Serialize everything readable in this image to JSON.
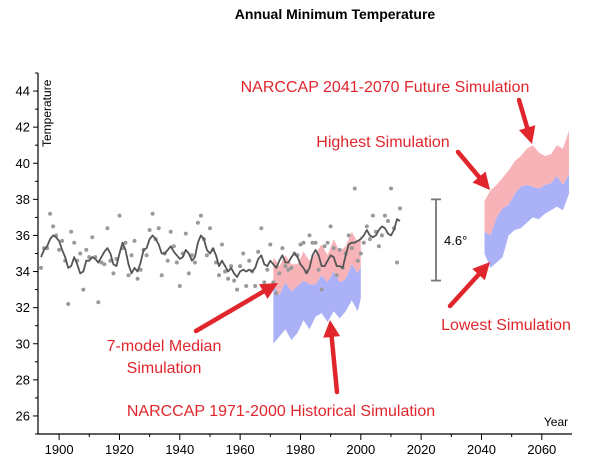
{
  "chart_data": {
    "type": "line",
    "title": "Annual Minimum Temperature",
    "xlabel": "Year",
    "ylabel": "Temperature",
    "xlim": [
      1893,
      2070
    ],
    "ylim": [
      25,
      45
    ],
    "xticks": [
      1900,
      1920,
      1940,
      1960,
      1980,
      2000,
      2020,
      2040,
      2060
    ],
    "yticks": [
      26,
      28,
      30,
      32,
      34,
      36,
      38,
      40,
      42,
      44
    ],
    "grid": false,
    "colors": {
      "observed_points": "#9a9a9a",
      "observed_line": "#555555",
      "upper_band": "#f7b3b7",
      "lower_band": "#aab1f7",
      "annotation": "#e0262c",
      "arrow": "#e0262c",
      "bracket": "#777777"
    },
    "series": [
      {
        "role": "observed_annual",
        "x": [
          1894,
          1895,
          1896,
          1897,
          1898,
          1899,
          1900,
          1901,
          1902,
          1903,
          1904,
          1905,
          1906,
          1907,
          1908,
          1909,
          1910,
          1911,
          1912,
          1913,
          1914,
          1915,
          1916,
          1917,
          1918,
          1919,
          1920,
          1921,
          1922,
          1923,
          1924,
          1925,
          1926,
          1927,
          1928,
          1929,
          1930,
          1931,
          1932,
          1933,
          1934,
          1935,
          1936,
          1937,
          1938,
          1939,
          1940,
          1941,
          1942,
          1943,
          1944,
          1945,
          1946,
          1947,
          1948,
          1949,
          1950,
          1951,
          1952,
          1953,
          1954,
          1955,
          1956,
          1957,
          1958,
          1959,
          1960,
          1961,
          1962,
          1963,
          1964,
          1965,
          1966,
          1967,
          1968,
          1969,
          1970,
          1971,
          1972,
          1973,
          1974,
          1975,
          1976,
          1977,
          1978,
          1979,
          1980,
          1981,
          1982,
          1983,
          1984,
          1985,
          1986,
          1987,
          1988,
          1989,
          1990,
          1991,
          1992,
          1993,
          1994,
          1995,
          1996,
          1997,
          1998,
          1999,
          2000,
          2001,
          2002,
          2003,
          2004,
          2005,
          2006,
          2007,
          2008,
          2009,
          2010,
          2011,
          2012,
          2013
        ],
        "y": [
          34.2,
          35.3,
          35.3,
          37.2,
          36.5,
          36.0,
          35.2,
          35.7,
          34.6,
          32.2,
          36.2,
          35.6,
          34.6,
          35.0,
          33.0,
          35.2,
          34.8,
          35.9,
          34.8,
          32.3,
          34.5,
          34.4,
          36.4,
          34.6,
          33.9,
          34.7,
          37.1,
          35.3,
          35.6,
          33.8,
          34.9,
          35.7,
          33.6,
          34.1,
          35.2,
          34.9,
          36.3,
          37.2,
          35.8,
          36.4,
          33.8,
          35.0,
          34.6,
          36.2,
          35.4,
          34.5,
          33.2,
          35.0,
          36.1,
          33.9,
          34.9,
          34.5,
          36.7,
          37.1,
          35.8,
          34.9,
          36.4,
          35.2,
          34.5,
          33.8,
          35.5,
          34.0,
          33.6,
          34.3,
          33.5,
          33.0,
          34.3,
          35.0,
          33.2,
          34.6,
          34.0,
          33.2,
          35.1,
          36.4,
          33.4,
          34.1,
          35.5,
          33.4,
          32.8,
          33.9,
          35.3,
          34.3,
          34.1,
          34.2,
          35.0,
          34.9,
          35.5,
          35.6,
          34.0,
          36.0,
          35.6,
          35.6,
          34.1,
          33.0,
          35.4,
          35.6,
          36.5,
          35.3,
          33.8,
          35.2,
          34.2,
          35.0,
          36.0,
          35.3,
          38.6,
          34.6,
          35.0,
          35.6,
          36.5,
          35.8,
          37.1,
          36.2,
          35.4,
          36.0,
          37.1,
          36.8,
          38.6,
          36.4,
          34.5,
          37.5
        ]
      },
      {
        "role": "observed_smoothed",
        "x": [
          1894,
          1895,
          1896,
          1897,
          1898,
          1899,
          1900,
          1901,
          1902,
          1903,
          1904,
          1905,
          1906,
          1907,
          1908,
          1909,
          1910,
          1911,
          1912,
          1913,
          1914,
          1915,
          1916,
          1917,
          1918,
          1919,
          1920,
          1921,
          1922,
          1923,
          1924,
          1925,
          1926,
          1927,
          1928,
          1929,
          1930,
          1931,
          1932,
          1933,
          1934,
          1935,
          1936,
          1937,
          1938,
          1939,
          1940,
          1941,
          1942,
          1943,
          1944,
          1945,
          1946,
          1947,
          1948,
          1949,
          1950,
          1951,
          1952,
          1953,
          1954,
          1955,
          1956,
          1957,
          1958,
          1959,
          1960,
          1961,
          1962,
          1963,
          1964,
          1965,
          1966,
          1967,
          1968,
          1969,
          1970,
          1971,
          1972,
          1973,
          1974,
          1975,
          1976,
          1977,
          1978,
          1979,
          1980,
          1981,
          1982,
          1983,
          1984,
          1985,
          1986,
          1987,
          1988,
          1989,
          1990,
          1991,
          1992,
          1993,
          1994,
          1995,
          1996,
          1997,
          1998,
          1999,
          2000,
          2001,
          2002,
          2003,
          2004,
          2005,
          2006,
          2007,
          2008,
          2009,
          2010,
          2011,
          2012,
          2013
        ],
        "y": [
          34.8,
          35.2,
          35.4,
          35.8,
          36.0,
          35.9,
          35.7,
          35.2,
          34.8,
          34.2,
          34.3,
          34.8,
          34.4,
          33.9,
          34.0,
          34.6,
          34.6,
          34.8,
          34.7,
          34.5,
          34.8,
          35.1,
          35.3,
          35.0,
          34.4,
          34.3,
          35.0,
          35.6,
          35.2,
          34.4,
          33.9,
          34.2,
          34.0,
          34.5,
          35.2,
          35.3,
          35.8,
          36.0,
          35.8,
          35.5,
          35.0,
          35.0,
          35.2,
          35.4,
          35.1,
          34.9,
          34.7,
          34.8,
          35.2,
          35.0,
          34.6,
          34.8,
          35.6,
          36.0,
          35.8,
          35.2,
          35.0,
          35.3,
          34.9,
          34.3,
          34.6,
          34.3,
          34.0,
          34.2,
          33.9,
          33.7,
          34.0,
          34.1,
          34.0,
          34.1,
          34.0,
          34.2,
          34.7,
          34.9,
          34.4,
          34.3,
          34.6,
          34.4,
          34.2,
          34.6,
          34.9,
          34.5,
          34.5,
          34.8,
          35.0,
          34.8,
          34.4,
          34.2,
          33.9,
          34.2,
          34.9,
          35.2,
          34.9,
          34.3,
          34.3,
          34.6,
          34.9,
          34.8,
          34.3,
          34.3,
          34.2,
          34.9,
          35.5,
          35.6,
          35.6,
          35.7,
          35.8,
          36.0,
          36.3,
          36.0,
          35.9,
          36.0,
          36.3,
          36.5,
          36.4,
          36.1,
          36.0,
          36.3,
          36.9,
          36.8
        ]
      },
      {
        "role": "historical_simulation_upper_band",
        "x": [
          1971,
          1973,
          1975,
          1977,
          1979,
          1981,
          1983,
          1985,
          1987,
          1989,
          1991,
          1993,
          1995,
          1997,
          1999,
          2000
        ],
        "upper": [
          34.8,
          34.3,
          34.9,
          34.4,
          34.4,
          35.1,
          34.6,
          35.0,
          35.5,
          34.9,
          35.8,
          35.1,
          35.4,
          36.2,
          35.6,
          36.0
        ],
        "lower": [
          33.3,
          32.7,
          33.4,
          32.9,
          33.2,
          33.5,
          33.3,
          33.3,
          33.8,
          33.4,
          34.0,
          33.4,
          33.6,
          34.4,
          33.9,
          34.3
        ]
      },
      {
        "role": "historical_simulation_lower_band",
        "x": [
          1971,
          1973,
          1975,
          1977,
          1979,
          1981,
          1983,
          1985,
          1987,
          1989,
          1991,
          1993,
          1995,
          1997,
          1999,
          2000
        ],
        "upper": [
          33.3,
          32.7,
          33.4,
          32.9,
          33.2,
          33.5,
          33.3,
          33.3,
          33.8,
          33.4,
          34.0,
          33.4,
          33.6,
          34.4,
          33.9,
          34.3
        ],
        "lower": [
          30.0,
          30.4,
          30.8,
          30.2,
          30.6,
          31.3,
          30.8,
          31.5,
          31.7,
          31.2,
          31.8,
          31.4,
          31.8,
          32.4,
          31.8,
          32.5
        ]
      },
      {
        "role": "future_simulation_upper_band",
        "x": [
          2041,
          2043,
          2045,
          2047,
          2049,
          2051,
          2053,
          2055,
          2057,
          2059,
          2061,
          2063,
          2065,
          2067,
          2069
        ],
        "upper": [
          37.9,
          38.5,
          38.8,
          39.2,
          39.6,
          40.1,
          40.4,
          40.8,
          41.0,
          40.6,
          40.4,
          40.5,
          41.0,
          40.8,
          41.8
        ],
        "lower": [
          36.2,
          36.0,
          37.0,
          37.5,
          37.7,
          38.3,
          38.7,
          38.8,
          38.7,
          38.6,
          38.8,
          38.9,
          39.3,
          38.8,
          39.4
        ]
      },
      {
        "role": "future_simulation_lower_band",
        "x": [
          2041,
          2043,
          2045,
          2047,
          2049,
          2051,
          2053,
          2055,
          2057,
          2059,
          2061,
          2063,
          2065,
          2067,
          2069
        ],
        "upper": [
          36.2,
          36.0,
          37.0,
          37.5,
          37.7,
          38.3,
          38.7,
          38.8,
          38.7,
          38.6,
          38.8,
          38.9,
          39.3,
          38.8,
          39.4
        ],
        "lower": [
          35.0,
          34.2,
          34.5,
          34.8,
          36.0,
          36.3,
          36.4,
          36.7,
          37.0,
          36.9,
          37.2,
          37.4,
          37.6,
          37.4,
          38.3
        ]
      }
    ],
    "bracket": {
      "label": "4.6°",
      "y_low": 33.5,
      "y_high": 38.0
    },
    "annotations": [
      {
        "text": "NARCCAP 2041-2070 Future Simulation"
      },
      {
        "text": "Highest Simulation"
      },
      {
        "text": "Lowest Simulation"
      },
      {
        "text": "7-model Median"
      },
      {
        "text": "Simulation"
      },
      {
        "text": "NARCCAP 1971-2000 Historical Simulation"
      }
    ]
  }
}
